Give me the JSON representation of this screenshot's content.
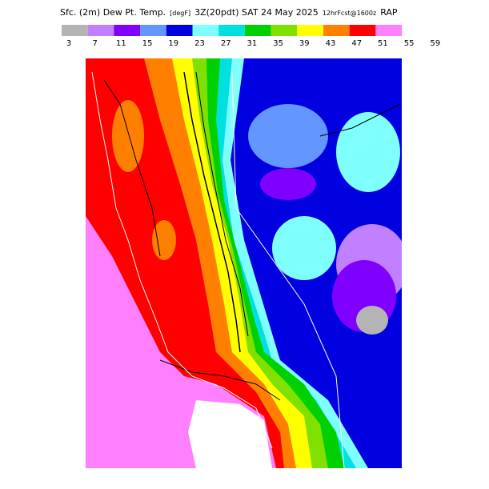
{
  "header": {
    "title": "Sfc. (2m) Dew Pt. Temp.",
    "units": "[degF]",
    "valid": "3Z(20pdt) SAT 24 May 2025",
    "forecast": "12hrFcst@1600z",
    "model": "RAP"
  },
  "colorbar": {
    "labels": [
      3,
      7,
      11,
      15,
      19,
      23,
      27,
      31,
      35,
      39,
      43,
      47,
      51,
      55,
      59
    ],
    "colors": [
      "#b4b4b4",
      "#c080ff",
      "#8000ff",
      "#6496ff",
      "#0000e0",
      "#80ffff",
      "#00e0e0",
      "#00d000",
      "#80e000",
      "#ffff00",
      "#ff8000",
      "#ff0000",
      "#ff80ff"
    ]
  }
}
